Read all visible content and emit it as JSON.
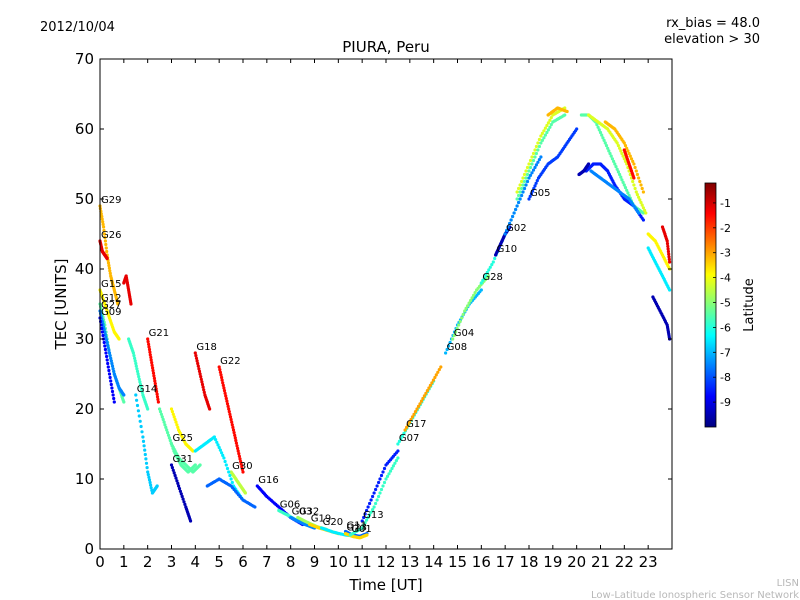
{
  "header": {
    "date": "2012/10/04",
    "params": [
      "rx_bias = 48.0",
      "elevation > 30"
    ]
  },
  "footer": {
    "line1": "LISN",
    "line2": "Low-Latitude Ionospheric Sensor Network"
  },
  "chart_data": {
    "type": "scatter",
    "title": "PIURA, Peru",
    "xlabel": "Time [UT]",
    "ylabel": "TEC [UNITS]",
    "xlim": [
      0,
      24
    ],
    "ylim": [
      0,
      70
    ],
    "xticks": [
      "0",
      "1",
      "2",
      "3",
      "4",
      "5",
      "6",
      "7",
      "8",
      "9",
      "10",
      "11",
      "12",
      "13",
      "14",
      "15",
      "16",
      "17",
      "18",
      "19",
      "20",
      "21",
      "22",
      "23"
    ],
    "yticks": [
      "0",
      "10",
      "20",
      "30",
      "40",
      "50",
      "60",
      "70"
    ],
    "grid": false,
    "colorbar": {
      "label": "Latitude",
      "range": [
        -10,
        -0.2
      ],
      "ticks": [
        "-1",
        "-2",
        "-3",
        "-4",
        "-5",
        "-6",
        "-7",
        "-8",
        "-9"
      ],
      "colors": [
        "#00007f",
        "#0000ff",
        "#007fff",
        "#00ffff",
        "#7fff7f",
        "#ffff00",
        "#ff7f00",
        "#ff0000",
        "#7f0000"
      ]
    },
    "series": [
      {
        "name": "G29",
        "lat": -3.2,
        "x": [
          0.0,
          0.15,
          0.3,
          0.45,
          0.6,
          0.75
        ],
        "y": [
          49,
          46,
          42,
          39,
          37,
          35
        ]
      },
      {
        "name": "G26",
        "lat": -1.2,
        "x": [
          0.0,
          0.1,
          0.2,
          0.3
        ],
        "y": [
          44,
          42.5,
          42,
          41.5
        ]
      },
      {
        "name": "G15",
        "lat": -3.8,
        "x": [
          0.0,
          0.2,
          0.4,
          0.6,
          0.8
        ],
        "y": [
          37,
          35,
          33,
          31,
          30
        ]
      },
      {
        "name": "G12",
        "lat": -5.5,
        "x": [
          0.0,
          0.2,
          0.4,
          0.6,
          0.8,
          1.0
        ],
        "y": [
          35,
          32,
          28,
          25,
          23,
          21
        ]
      },
      {
        "name": "G27",
        "lat": -7.5,
        "x": [
          0.0,
          0.2,
          0.4,
          0.6,
          0.8,
          1.0
        ],
        "y": [
          34,
          31,
          28,
          25,
          23,
          22
        ]
      },
      {
        "name": "G09",
        "lat": -8.8,
        "x": [
          0.0,
          0.2,
          0.4,
          0.6
        ],
        "y": [
          33,
          29,
          25,
          21
        ]
      },
      {
        "name": "G21",
        "lat": -1.5,
        "x": [
          2.0,
          2.15,
          2.3,
          2.45
        ],
        "y": [
          30,
          27,
          24,
          21
        ]
      },
      {
        "name": "G18",
        "lat": -1.2,
        "x": [
          4.0,
          4.2,
          4.4,
          4.6
        ],
        "y": [
          28,
          25,
          22,
          20
        ]
      },
      {
        "name": "G22",
        "lat": -1.5,
        "x": [
          5.0,
          5.2,
          5.4,
          5.6,
          5.8,
          6.0
        ],
        "y": [
          26,
          23,
          20,
          17,
          14,
          11
        ]
      },
      {
        "name": "G14",
        "lat": -6.8,
        "x": [
          1.5,
          1.8,
          2.0,
          2.2,
          2.4
        ],
        "y": [
          22,
          16,
          11,
          8,
          9
        ]
      },
      {
        "name": "G25",
        "lat": -5.5,
        "x": [
          3.0,
          3.3,
          3.6,
          3.9,
          4.2
        ],
        "y": [
          15,
          13,
          12,
          11,
          12
        ]
      },
      {
        "name": "G31",
        "lat": -9.5,
        "x": [
          3.0,
          3.3,
          3.6,
          3.8
        ],
        "y": [
          12,
          9,
          6,
          4
        ]
      },
      {
        "name": "G30",
        "lat": -4.5,
        "x": [
          5.5,
          5.7,
          5.9,
          6.1
        ],
        "y": [
          11,
          10,
          9,
          8
        ]
      },
      {
        "name": "G16",
        "lat": -8.8,
        "x": [
          6.6,
          7.0,
          7.5,
          8.0,
          8.5
        ],
        "y": [
          9,
          7.5,
          6,
          4.5,
          3.5
        ]
      },
      {
        "name": "G06",
        "lat": -5.8,
        "x": [
          7.5,
          7.9,
          8.3,
          8.7
        ],
        "y": [
          5.5,
          4.8,
          4.0,
          3.4
        ]
      },
      {
        "name": "G03",
        "lat": -7.5,
        "x": [
          8.0,
          8.3,
          8.6,
          9.0
        ],
        "y": [
          4.5,
          4.0,
          3.5,
          3.0
        ]
      },
      {
        "name": "G32",
        "lat": -4.8,
        "x": [
          8.3,
          8.7,
          9.1,
          9.5
        ],
        "y": [
          4.5,
          3.8,
          3.2,
          2.8
        ]
      },
      {
        "name": "G19",
        "lat": -3.5,
        "x": [
          8.8,
          9.2,
          9.6,
          10.0
        ],
        "y": [
          3.5,
          3.0,
          2.6,
          2.2
        ]
      },
      {
        "name": "G20",
        "lat": -6.5,
        "x": [
          9.3,
          9.8,
          10.3,
          10.8
        ],
        "y": [
          3.0,
          2.4,
          2.0,
          1.8
        ]
      },
      {
        "name": "G11",
        "lat": -7.8,
        "x": [
          10.3,
          10.6,
          10.9,
          11.2
        ],
        "y": [
          2.5,
          2.0,
          1.8,
          2.2
        ]
      },
      {
        "name": "G23",
        "lat": -3.5,
        "x": [
          10.3,
          10.6,
          10.9,
          11.2
        ],
        "y": [
          2.2,
          1.8,
          1.6,
          2.0
        ]
      },
      {
        "name": "G01",
        "lat": -5.8,
        "x": [
          10.5,
          11.0,
          11.5,
          12.0,
          12.5
        ],
        "y": [
          2.0,
          3.0,
          6.0,
          10.0,
          13.0
        ]
      },
      {
        "name": "G13",
        "lat": -8.5,
        "x": [
          11.0,
          11.5,
          12.0,
          12.5
        ],
        "y": [
          4.0,
          8.0,
          12.0,
          14.0
        ]
      },
      {
        "name": "G07",
        "lat": -6.0,
        "x": [
          12.5,
          13.0,
          13.5,
          14.0
        ],
        "y": [
          15,
          18,
          21,
          24
        ]
      },
      {
        "name": "G17",
        "lat": -3.0,
        "x": [
          12.8,
          13.3,
          13.8,
          14.3
        ],
        "y": [
          17,
          20,
          23,
          26
        ]
      },
      {
        "name": "G08",
        "lat": -7.0,
        "x": [
          14.5,
          15.0,
          15.5,
          16.0
        ],
        "y": [
          28,
          32,
          35,
          37
        ]
      },
      {
        "name": "G04",
        "lat": -5.0,
        "x": [
          14.8,
          15.3,
          15.8,
          16.3
        ],
        "y": [
          30,
          34,
          37,
          39
        ]
      },
      {
        "name": "G28",
        "lat": -6.0,
        "x": [
          16.0,
          16.5,
          17.0,
          17.5,
          18.0
        ],
        "y": [
          38,
          41,
          45,
          49,
          53
        ]
      },
      {
        "name": "G10",
        "lat": -9.5,
        "x": [
          16.6,
          16.8,
          17.0,
          17.2
        ],
        "y": [
          42,
          43.5,
          45,
          46
        ]
      },
      {
        "name": "G02",
        "lat": -7.5,
        "x": [
          17.0,
          17.5,
          18.0,
          18.5
        ],
        "y": [
          45,
          49,
          53,
          56
        ]
      },
      {
        "name": "G05",
        "lat": -8.2,
        "x": [
          18.0,
          18.4,
          18.8,
          19.2,
          19.6,
          20.0
        ],
        "y": [
          50,
          53,
          55,
          56,
          58,
          60
        ]
      },
      {
        "name": "",
        "lat": -4.2,
        "x": [
          17.5,
          18.0,
          18.5,
          19.0,
          19.5
        ],
        "y": [
          51,
          55,
          59,
          62,
          63
        ]
      },
      {
        "name": "",
        "lat": -5.5,
        "x": [
          17.5,
          18.0,
          18.5,
          19.0,
          19.5
        ],
        "y": [
          50,
          54,
          58,
          61,
          62
        ]
      },
      {
        "name": "",
        "lat": -3.2,
        "x": [
          18.8,
          19.2,
          19.6
        ],
        "y": [
          62,
          63,
          62.5
        ]
      },
      {
        "name": "",
        "lat": -5.5,
        "x": [
          20.2,
          20.5,
          20.8,
          21.2,
          21.6,
          22.0,
          22.4,
          22.8
        ],
        "y": [
          62,
          62,
          61,
          58,
          55,
          52,
          49,
          48
        ]
      },
      {
        "name": "",
        "lat": -4.2,
        "x": [
          20.5,
          20.9,
          21.3,
          21.7,
          22.1,
          22.5,
          22.9
        ],
        "y": [
          62,
          61,
          60,
          58,
          55,
          51,
          48
        ]
      },
      {
        "name": "",
        "lat": -3.2,
        "x": [
          21.2,
          21.6,
          22.0,
          22.4,
          22.8
        ],
        "y": [
          61,
          60,
          58,
          55,
          51
        ]
      },
      {
        "name": "",
        "lat": -1.5,
        "x": [
          22.0,
          22.2,
          22.4
        ],
        "y": [
          57,
          55,
          53
        ]
      },
      {
        "name": "",
        "lat": -8.5,
        "x": [
          20.4,
          20.7,
          21.0,
          21.3,
          21.6,
          22.0,
          22.4,
          22.8
        ],
        "y": [
          54,
          55,
          55,
          54,
          52,
          50,
          49,
          47
        ]
      },
      {
        "name": "",
        "lat": -9.5,
        "x": [
          20.1,
          20.3,
          20.5
        ],
        "y": [
          53.5,
          54,
          55
        ]
      },
      {
        "name": "",
        "lat": -7.5,
        "x": [
          20.6,
          21.0,
          21.4,
          21.8,
          22.2,
          22.6
        ],
        "y": [
          54,
          53,
          52,
          51,
          50,
          48
        ]
      },
      {
        "name": "",
        "lat": -6.5,
        "x": [
          23.0,
          23.3,
          23.6,
          23.9
        ],
        "y": [
          43,
          41,
          39,
          37
        ]
      },
      {
        "name": "",
        "lat": -3.8,
        "x": [
          23.0,
          23.3,
          23.6,
          23.9
        ],
        "y": [
          45,
          44,
          42,
          40
        ]
      },
      {
        "name": "",
        "lat": -1.2,
        "x": [
          23.6,
          23.8,
          23.9
        ],
        "y": [
          46,
          44,
          41
        ]
      },
      {
        "name": "",
        "lat": -9.5,
        "x": [
          23.2,
          23.5,
          23.8,
          23.9
        ],
        "y": [
          36,
          34,
          32,
          30
        ]
      },
      {
        "name": "",
        "lat": -1.2,
        "x": [
          1.0,
          1.1,
          1.2,
          1.3
        ],
        "y": [
          38,
          39,
          37,
          35
        ]
      },
      {
        "name": "",
        "lat": -5.8,
        "x": [
          1.2,
          1.4,
          1.6,
          1.8,
          2.0
        ],
        "y": [
          30,
          28,
          25,
          22,
          20
        ]
      },
      {
        "name": "",
        "lat": -5.5,
        "x": [
          2.5,
          2.8,
          3.1,
          3.4,
          3.7,
          4.0
        ],
        "y": [
          20,
          17,
          14,
          12,
          11,
          12
        ]
      },
      {
        "name": "",
        "lat": -3.8,
        "x": [
          3.0,
          3.3,
          3.6,
          3.9
        ],
        "y": [
          20,
          17,
          15,
          14
        ]
      },
      {
        "name": "",
        "lat": -6.5,
        "x": [
          4.0,
          4.4,
          4.8,
          5.2,
          5.6,
          6.0
        ],
        "y": [
          14,
          15,
          16,
          13,
          9,
          7
        ]
      },
      {
        "name": "",
        "lat": -7.8,
        "x": [
          4.5,
          5.0,
          5.5,
          6.0,
          6.5
        ],
        "y": [
          9,
          10,
          9,
          7,
          6
        ]
      }
    ]
  }
}
